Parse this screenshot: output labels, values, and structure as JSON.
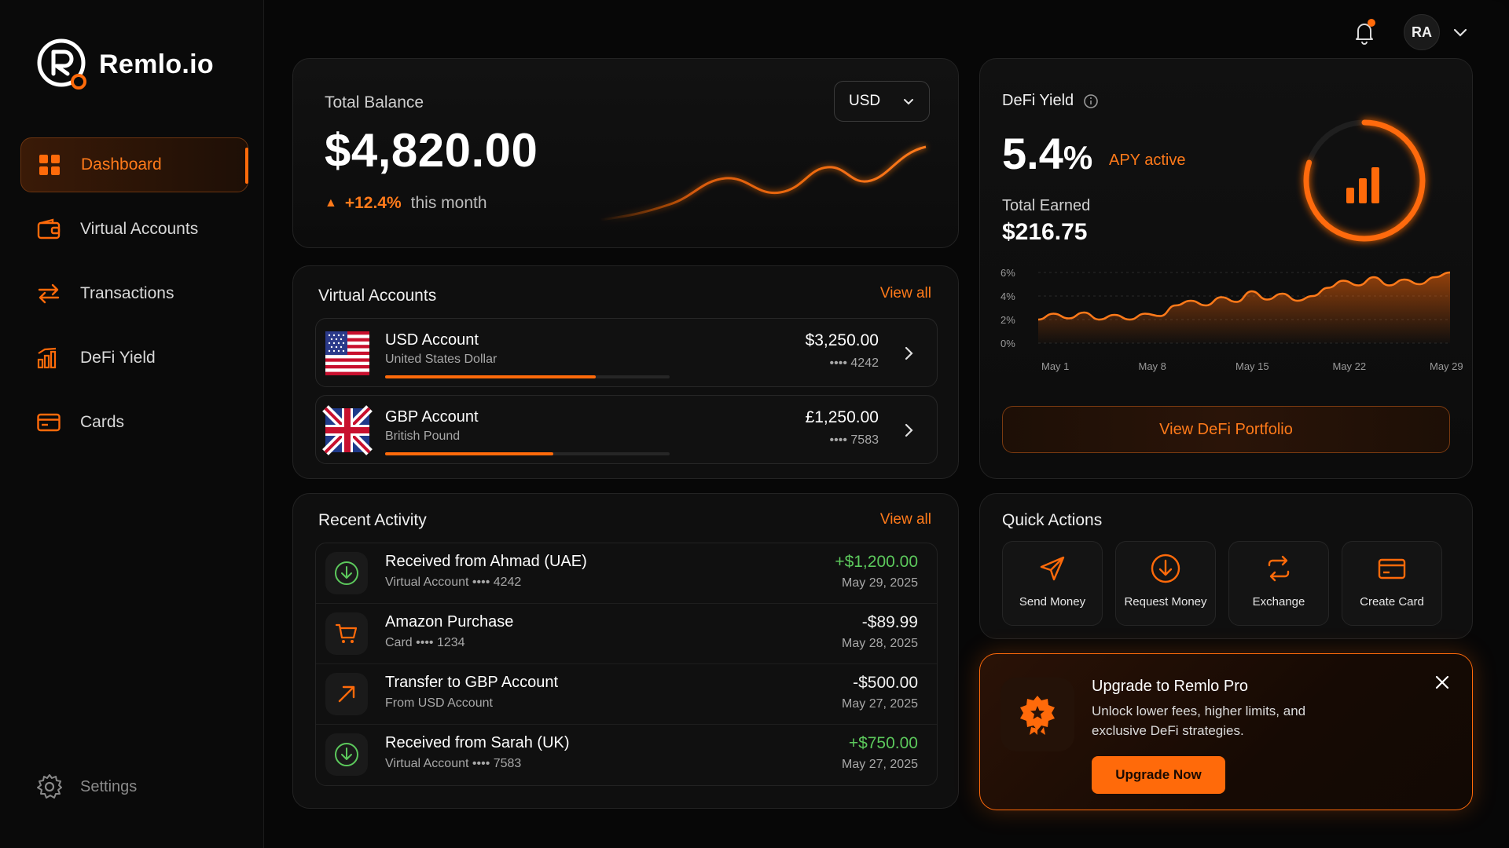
{
  "app": {
    "name": "Remlo.io",
    "accent": "#ff6a0a"
  },
  "sidebar": {
    "items": [
      {
        "label": "Dashboard",
        "icon": "grid-icon",
        "active": true
      },
      {
        "label": "Virtual Accounts",
        "icon": "wallet-icon"
      },
      {
        "label": "Transactions",
        "icon": "arrows-swap-icon"
      },
      {
        "label": "DeFi Yield",
        "icon": "bar-chart-icon"
      },
      {
        "label": "Cards",
        "icon": "card-icon"
      }
    ],
    "settings_label": "Settings"
  },
  "topbar": {
    "avatar_initials": "RA",
    "notification_dot": true
  },
  "balance": {
    "label": "Total Balance",
    "amount": "$4,820.00",
    "change": "+12.4%",
    "change_period": "this month",
    "currency": "USD"
  },
  "virtual_accounts": {
    "title": "Virtual Accounts",
    "view_all": "View all",
    "items": [
      {
        "name": "USD Account",
        "sub": "United States Dollar",
        "balance": "$3,250.00",
        "number": "•••• 4242",
        "progress": 0.74,
        "flag": "us-flag-icon"
      },
      {
        "name": "GBP Account",
        "sub": "British Pound",
        "balance": "£1,250.00",
        "number": "•••• 7583",
        "progress": 0.59,
        "flag": "uk-flag-icon"
      }
    ]
  },
  "recent_activity": {
    "title": "Recent Activity",
    "view_all": "View all",
    "items": [
      {
        "title": "Received from Ahmad (UAE)",
        "sub": "Virtual Account •••• 4242",
        "amount": "+$1,200.00",
        "date": "May 29, 2025",
        "type": "in",
        "icon": "download-circle-icon"
      },
      {
        "title": "Amazon Purchase",
        "sub": "Card •••• 1234",
        "amount": "-$89.99",
        "date": "May 28, 2025",
        "type": "out",
        "icon": "cart-icon"
      },
      {
        "title": "Transfer to GBP Account",
        "sub": "From USD Account",
        "amount": "-$500.00",
        "date": "May 27, 2025",
        "type": "out",
        "icon": "arrow-up-right-icon"
      },
      {
        "title": "Received from Sarah (UK)",
        "sub": "Virtual Account •••• 7583",
        "amount": "+$750.00",
        "date": "May 27, 2025",
        "type": "in",
        "icon": "download-circle-icon"
      }
    ],
    "colors": {
      "in": "#5cc95c",
      "out": "#f2f2f2"
    }
  },
  "defi": {
    "title": "DeFi Yield",
    "apy_value": "5.4",
    "apy_unit": "%",
    "apy_label": "APY active",
    "earned_label": "Total Earned",
    "earned_value": "$216.75",
    "button": "View DeFi Portfolio",
    "ring_fill": 0.8,
    "chart_data": {
      "type": "area",
      "x_ticks": [
        "May 1",
        "May 8",
        "May 15",
        "May 22",
        "May 29"
      ],
      "y_ticks": [
        "6%",
        "4%",
        "2%",
        "0%"
      ],
      "ylim": [
        0,
        6
      ],
      "values": [
        2.0,
        2.5,
        2.1,
        2.6,
        2.0,
        2.4,
        2.0,
        2.5,
        2.3,
        3.2,
        3.6,
        3.2,
        3.9,
        3.5,
        4.4,
        3.7,
        4.2,
        3.6,
        4.0,
        4.7,
        5.3,
        4.9,
        5.6,
        4.9,
        5.4,
        5.0,
        5.6,
        6.0
      ]
    }
  },
  "quick_actions": {
    "title": "Quick Actions",
    "items": [
      {
        "label": "Send Money",
        "icon": "send-icon"
      },
      {
        "label": "Request Money",
        "icon": "download-circle-icon"
      },
      {
        "label": "Exchange",
        "icon": "exchange-icon"
      },
      {
        "label": "Create Card",
        "icon": "card-icon"
      }
    ]
  },
  "upgrade": {
    "title": "Upgrade to Remlo Pro",
    "desc": "Unlock lower fees, higher limits, and exclusive DeFi strategies.",
    "button": "Upgrade Now"
  }
}
